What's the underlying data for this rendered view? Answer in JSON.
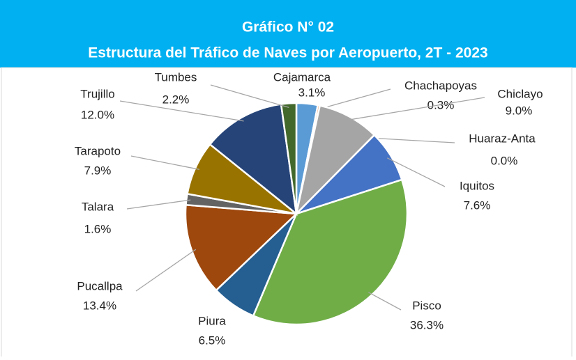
{
  "chart_data": {
    "type": "pie",
    "title": "Gráfico N° 02",
    "subtitle": "Estructura del Tráfico de Naves por Aeropuerto, 2T - 2023",
    "categories": [
      "Cajamarca",
      "Chachapoyas",
      "Chiclayo",
      "Huaraz-Anta",
      "Iquitos",
      "Pisco",
      "Piura",
      "Pucallpa",
      "Talara",
      "Tarapoto",
      "Trujillo",
      "Tumbes"
    ],
    "values": [
      3.1,
      0.3,
      9.0,
      0.0,
      7.6,
      36.3,
      6.5,
      13.4,
      1.6,
      7.9,
      12.0,
      2.2
    ],
    "value_labels": [
      "3.1%",
      "0.3%",
      "9.0%",
      "0.0%",
      "7.6%",
      "36.3%",
      "6.5%",
      "13.4%",
      "1.6%",
      "7.9%",
      "12.0%",
      "2.2%"
    ],
    "colors": [
      "#5b9bd5",
      "#ed7d31",
      "#a5a5a5",
      "#ffc000",
      "#4472c4",
      "#70ad47",
      "#255e91",
      "#9e480e",
      "#636363",
      "#997300",
      "#264478",
      "#43682b"
    ]
  }
}
